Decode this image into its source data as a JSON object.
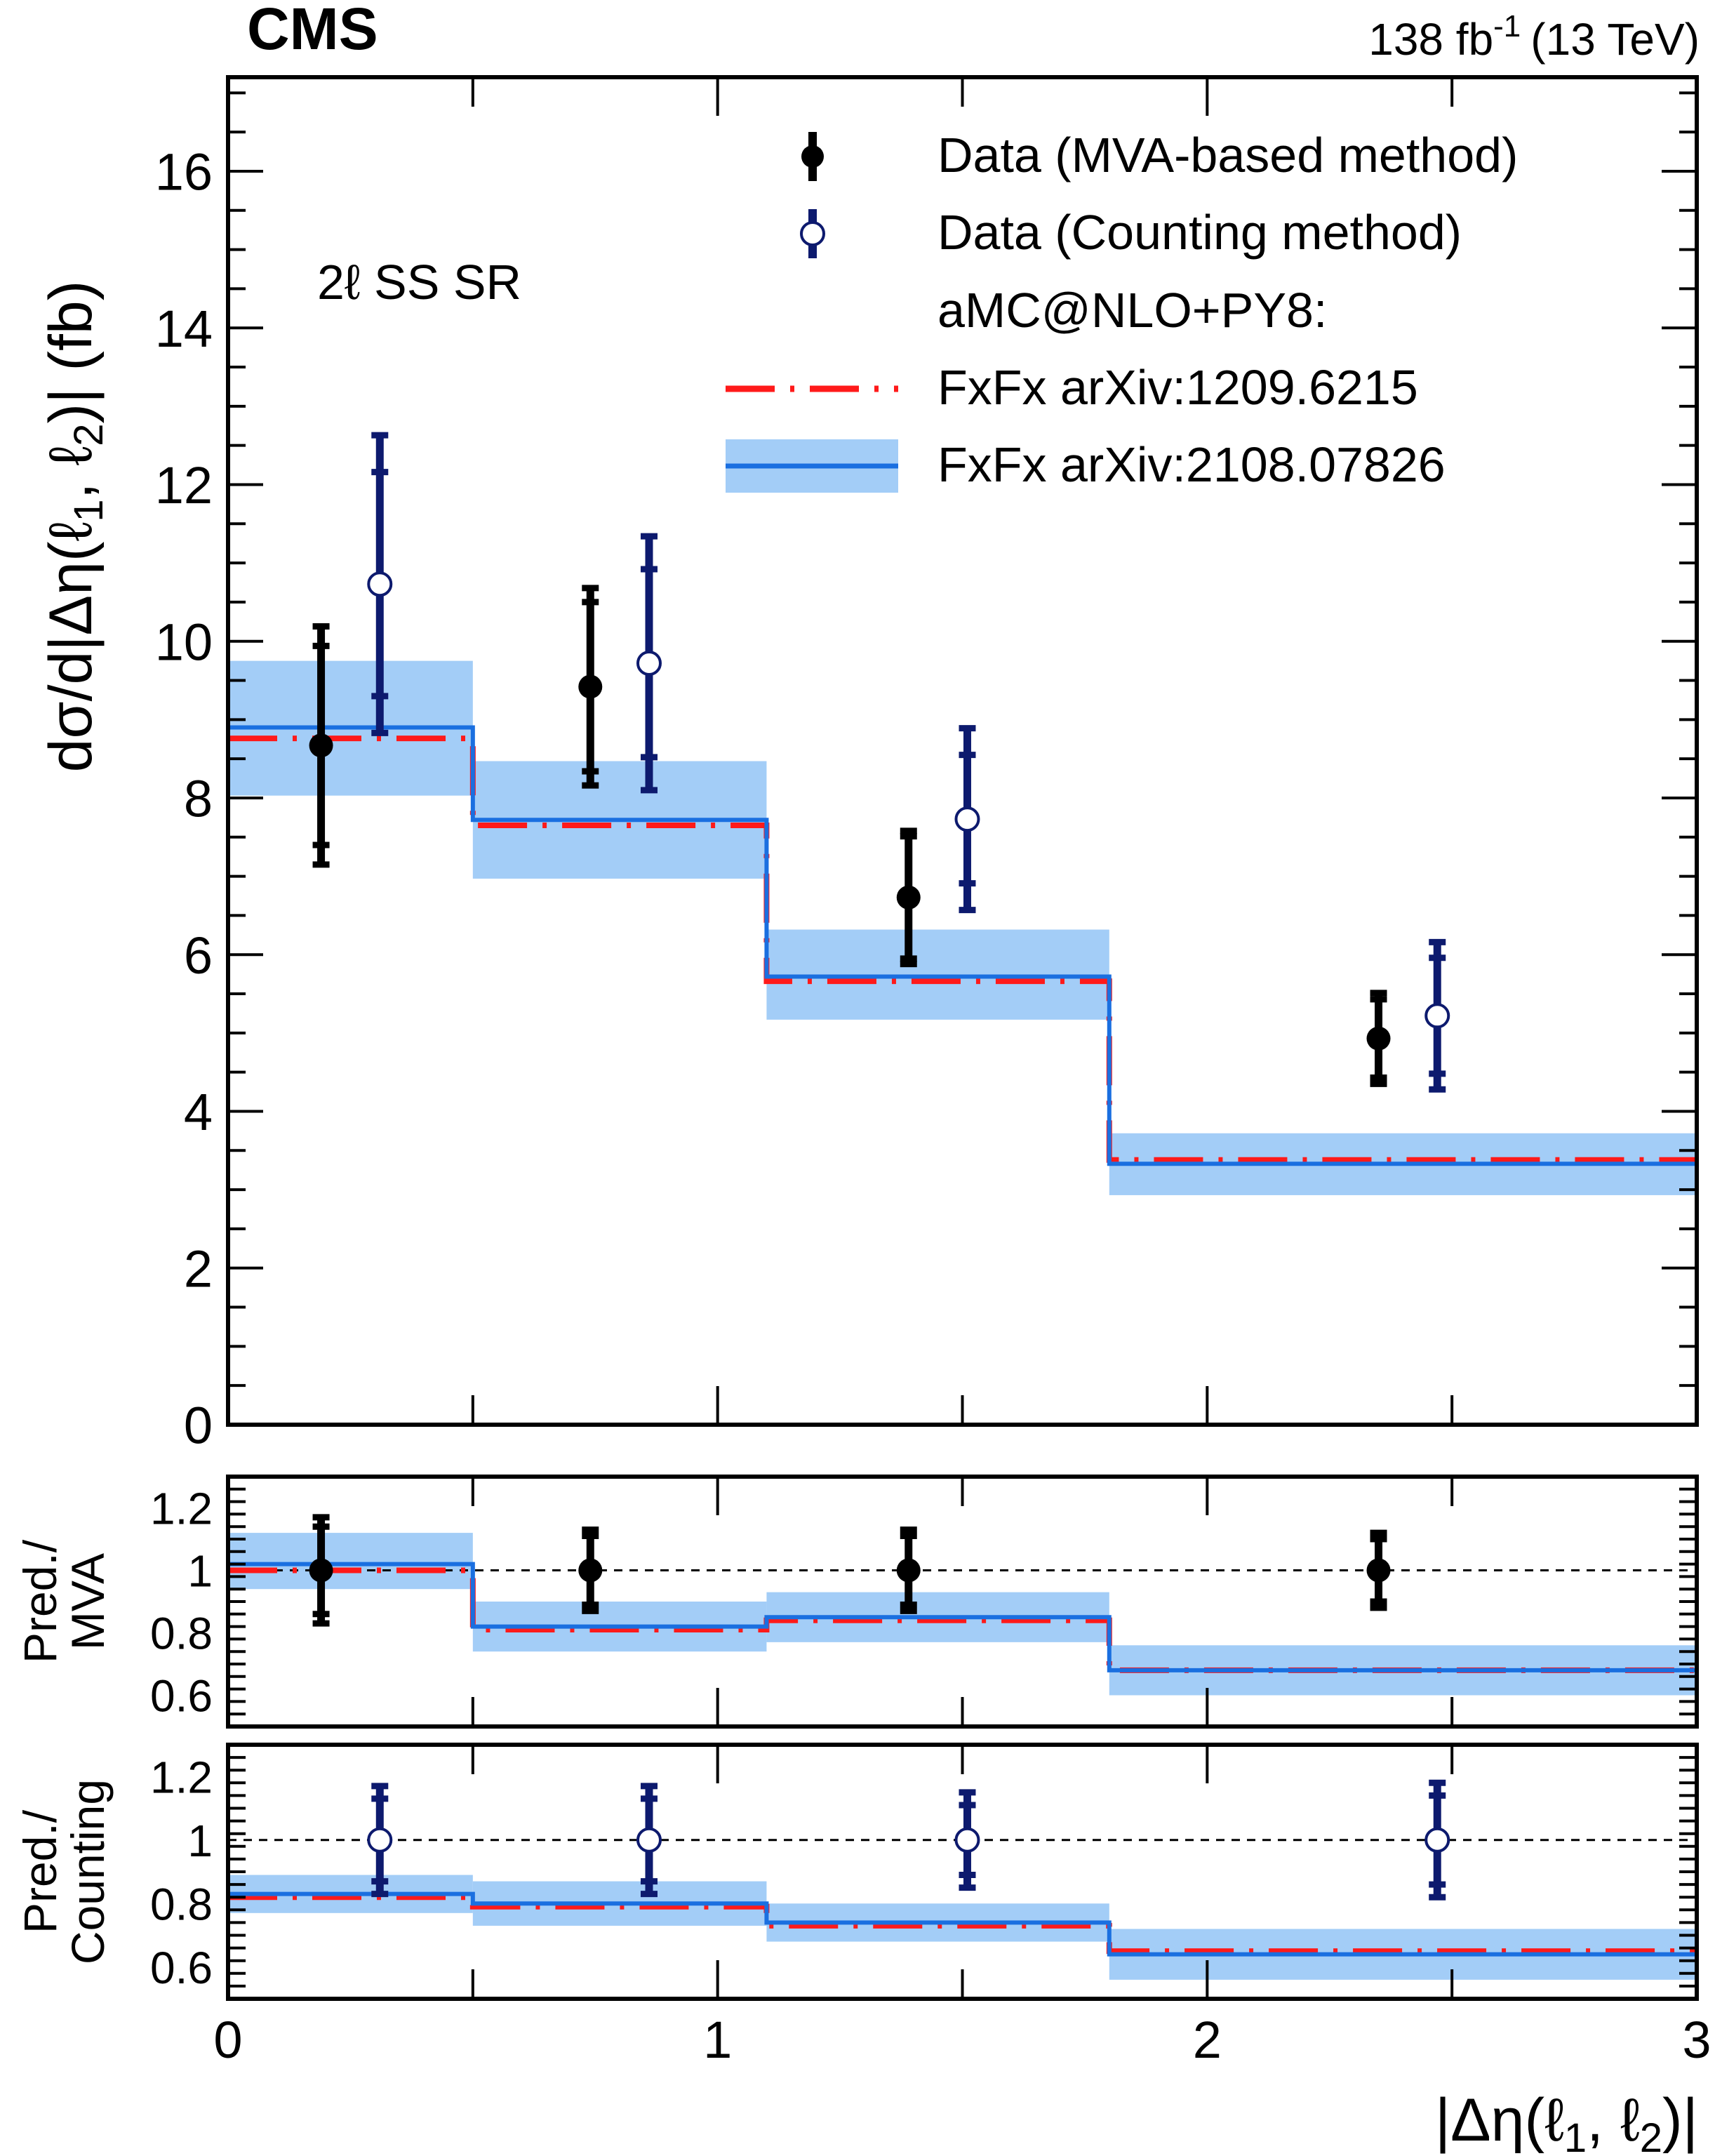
{
  "header": {
    "experiment": "CMS",
    "lumi": "138 fb",
    "lumi_exp": "-1",
    "energy": "(13 TeV)"
  },
  "annotation": {
    "region": "2ℓ SS SR"
  },
  "legend": {
    "mva": "Data (MVA-based method)",
    "counting": "Data (Counting method)",
    "generator": "aMC@NLO+PY8:",
    "pred_old": "FxFx arXiv:1209.6215",
    "pred_new": "FxFx arXiv:2108.07826"
  },
  "colors": {
    "mva": "#000000",
    "counting": "#0d1a6e",
    "pred_old": "#ff1a1a",
    "pred_new_line": "#1a6fe0",
    "pred_new_band": "#a3cdf7"
  },
  "chart_data": [
    {
      "panel": "main",
      "type": "step",
      "ylabel": "dσ/d|Δη(ℓ1, ℓ2)| (fb)",
      "ylabel_parts": [
        "dσ/d|Δη(ℓ",
        "1",
        ", ℓ",
        "2",
        ")| (fb)"
      ],
      "xlim": [
        0,
        3
      ],
      "ylim": [
        0,
        17.2
      ],
      "yticks": [
        0,
        2,
        4,
        6,
        8,
        10,
        12,
        14,
        16
      ],
      "bin_edges": [
        0,
        0.5,
        1.1,
        1.8,
        3.0
      ],
      "series": [
        {
          "name": "FxFx arXiv:2108.07826",
          "values": [
            8.9,
            7.72,
            5.72,
            3.33
          ],
          "band_low": [
            8.03,
            6.97,
            5.17,
            2.93
          ],
          "band_high": [
            9.75,
            8.47,
            6.32,
            3.72
          ]
        },
        {
          "name": "FxFx arXiv:1209.6215",
          "values": [
            8.76,
            7.65,
            5.66,
            3.38
          ]
        },
        {
          "name": "Data (MVA-based method)",
          "x": [
            0.19,
            0.74,
            1.39,
            2.35
          ],
          "y": [
            8.67,
            9.42,
            6.73,
            4.93
          ],
          "err_tot": [
            1.52,
            1.26,
            0.85,
            0.58
          ],
          "err_stat": [
            1.27,
            1.08,
            0.78,
            0.5
          ]
        },
        {
          "name": "Data (Counting method)",
          "x": [
            0.31,
            0.86,
            1.51,
            2.47
          ],
          "y": [
            10.73,
            9.72,
            7.73,
            5.22
          ],
          "err_tot": [
            1.9,
            1.62,
            1.16,
            0.94
          ],
          "err_stat": [
            1.43,
            1.2,
            0.82,
            0.74
          ]
        }
      ]
    },
    {
      "panel": "ratio_mva",
      "type": "step",
      "ylabel": [
        "Pred./",
        "MVA"
      ],
      "ylim": [
        0.5,
        1.3
      ],
      "yticks": [
        0.6,
        0.8,
        1,
        1.2
      ],
      "ytick_labels": [
        "0.6",
        "0.8",
        "1",
        "1.2"
      ],
      "reference_line": 1,
      "series": [
        {
          "name": "FxFx arXiv:2108.07826",
          "values": [
            1.02,
            0.82,
            0.85,
            0.68
          ],
          "band_low": [
            0.94,
            0.74,
            0.77,
            0.6
          ],
          "band_high": [
            1.12,
            0.9,
            0.93,
            0.76
          ]
        },
        {
          "name": "FxFx arXiv:1209.6215",
          "values": [
            1.0,
            0.81,
            0.84,
            0.68
          ]
        },
        {
          "name": "Data (MVA-based method)",
          "x": [
            0.19,
            0.74,
            1.39,
            2.35
          ],
          "y": [
            1,
            1,
            1,
            1
          ],
          "err_tot": [
            0.17,
            0.13,
            0.13,
            0.12
          ],
          "err_stat": [
            0.14,
            0.11,
            0.11,
            0.1
          ]
        }
      ]
    },
    {
      "panel": "ratio_counting",
      "type": "step",
      "ylabel": [
        "Pred./",
        "Counting"
      ],
      "xlabel": "|Δη(ℓ1, ℓ2)|",
      "xlabel_parts": [
        "|Δη(ℓ",
        "1",
        ", ℓ",
        "2",
        ")|"
      ],
      "xlim": [
        0,
        3
      ],
      "xticks": [
        0,
        1,
        2,
        3
      ],
      "ylim": [
        0.5,
        1.3
      ],
      "yticks": [
        0.6,
        0.8,
        1,
        1.2
      ],
      "ytick_labels": [
        "0.6",
        "0.8",
        "1",
        "1.2"
      ],
      "reference_line": 1,
      "series": [
        {
          "name": "FxFx arXiv:2108.07826",
          "values": [
            0.83,
            0.8,
            0.74,
            0.64
          ],
          "band_low": [
            0.77,
            0.73,
            0.68,
            0.56
          ],
          "band_high": [
            0.89,
            0.87,
            0.8,
            0.72
          ]
        },
        {
          "name": "FxFx arXiv:1209.6215",
          "values": [
            0.82,
            0.79,
            0.73,
            0.65
          ]
        },
        {
          "name": "Data (Counting method)",
          "x": [
            0.31,
            0.86,
            1.51,
            2.47
          ],
          "y": [
            1,
            1,
            1,
            1
          ],
          "err_tot": [
            0.17,
            0.17,
            0.15,
            0.18
          ],
          "err_stat": [
            0.13,
            0.13,
            0.11,
            0.14
          ]
        }
      ]
    }
  ]
}
